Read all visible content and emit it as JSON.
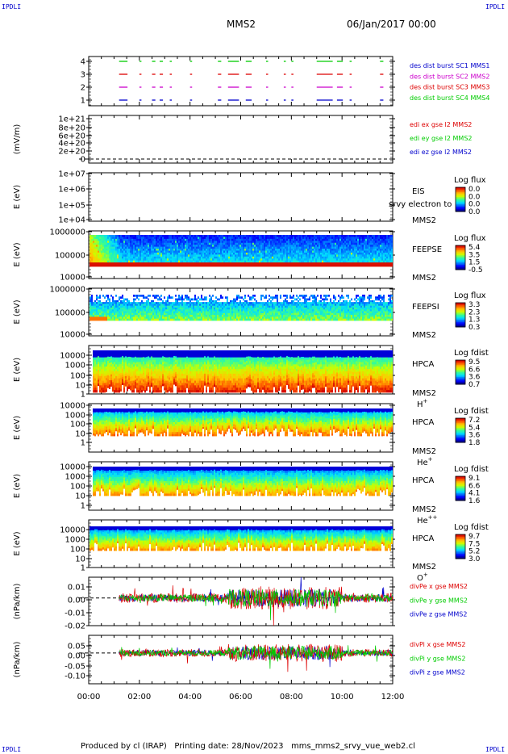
{
  "corners": {
    "top_left": "IPDLI",
    "top_right": "IPDLI",
    "bottom_left": "IPDLI",
    "bottom_right": "IPDLI"
  },
  "header": {
    "title": "MMS2",
    "date": "06/Jan/2017 00:00"
  },
  "footer": {
    "produced": "Produced by cl (IRAP)",
    "printing": "Printing date: 28/Nov/2023",
    "file": "mms_mms2_srvy_vue_web2.cl"
  },
  "colors": {
    "blue": "#0000cc",
    "red": "#dd0000",
    "magenta": "#cc00cc",
    "green": "#00cc00"
  },
  "chart_data": [
    {
      "type": "scatter",
      "id": "burst",
      "ylabel": "",
      "yticks": [
        "4",
        "3",
        "2",
        "1"
      ],
      "legend": [
        {
          "text": "des dist burst SC1 MMS1",
          "color": "#0000cc"
        },
        {
          "text": "des dist burst SC2 MMS2",
          "color": "#cc00cc"
        },
        {
          "text": "des dist burst SC3 MMS3",
          "color": "#dd0000"
        },
        {
          "text": "des dist burst SC4 MMS4",
          "color": "#00cc00"
        }
      ],
      "series": [
        {
          "level": 4,
          "color": "#00cc00",
          "intervals": [
            [
              1.2,
              1.5
            ],
            [
              2.0,
              2.05
            ],
            [
              2.5,
              2.6
            ],
            [
              2.8,
              2.9
            ],
            [
              3.2,
              3.25
            ],
            [
              4.0,
              4.05
            ],
            [
              5.1,
              5.2
            ],
            [
              5.5,
              5.9
            ],
            [
              6.2,
              6.4
            ],
            [
              7.0,
              7.05
            ],
            [
              7.7,
              7.75
            ],
            [
              8.0,
              8.05
            ],
            [
              9.0,
              9.6
            ],
            [
              9.8,
              10.0
            ],
            [
              10.3,
              10.35
            ],
            [
              11.5,
              11.6
            ]
          ]
        },
        {
          "level": 3,
          "color": "#dd0000",
          "intervals": [
            [
              1.2,
              1.5
            ],
            [
              2.0,
              2.05
            ],
            [
              2.5,
              2.6
            ],
            [
              2.8,
              2.9
            ],
            [
              3.2,
              3.25
            ],
            [
              4.0,
              4.05
            ],
            [
              5.1,
              5.2
            ],
            [
              5.5,
              5.9
            ],
            [
              6.2,
              6.4
            ],
            [
              7.0,
              7.05
            ],
            [
              7.7,
              7.75
            ],
            [
              8.0,
              8.05
            ],
            [
              9.0,
              9.6
            ],
            [
              9.8,
              10.0
            ],
            [
              10.3,
              10.35
            ],
            [
              11.5,
              11.6
            ]
          ]
        },
        {
          "level": 2,
          "color": "#cc00cc",
          "intervals": [
            [
              1.2,
              1.5
            ],
            [
              2.0,
              2.05
            ],
            [
              2.5,
              2.6
            ],
            [
              2.8,
              2.9
            ],
            [
              3.2,
              3.25
            ],
            [
              4.0,
              4.05
            ],
            [
              5.1,
              5.2
            ],
            [
              5.5,
              5.9
            ],
            [
              6.2,
              6.4
            ],
            [
              7.0,
              7.05
            ],
            [
              7.7,
              7.75
            ],
            [
              8.0,
              8.05
            ],
            [
              9.0,
              9.6
            ],
            [
              9.8,
              10.0
            ],
            [
              10.3,
              10.35
            ],
            [
              11.5,
              11.6
            ]
          ]
        },
        {
          "level": 1,
          "color": "#0000cc",
          "intervals": [
            [
              1.2,
              1.5
            ],
            [
              2.0,
              2.05
            ],
            [
              2.5,
              2.6
            ],
            [
              2.8,
              2.9
            ],
            [
              3.2,
              3.25
            ],
            [
              4.0,
              4.05
            ],
            [
              5.1,
              5.2
            ],
            [
              5.5,
              5.9
            ],
            [
              6.2,
              6.4
            ],
            [
              7.0,
              7.05
            ],
            [
              7.7,
              7.75
            ],
            [
              8.0,
              8.05
            ],
            [
              9.0,
              9.6
            ],
            [
              9.8,
              10.0
            ],
            [
              10.3,
              10.35
            ],
            [
              11.5,
              11.6
            ]
          ]
        }
      ]
    },
    {
      "type": "line",
      "id": "edi",
      "ylabel": "(mV/m)",
      "yticks": [
        "1e+21",
        "8e+20",
        "6e+20",
        "4e+20",
        "2e+20",
        "0"
      ],
      "legend": [
        {
          "text": "edi ex gse l2 MMS2",
          "color": "#dd0000"
        },
        {
          "text": "edi ey gse l2 MMS2",
          "color": "#00cc00"
        },
        {
          "text": "edi ez gse l2 MMS2",
          "color": "#0000cc"
        }
      ]
    },
    {
      "type": "heatmap",
      "id": "eis",
      "ylabel": "E (eV)",
      "yticks": [
        "1e+07",
        "1e+06",
        "1e+05",
        "1e+04"
      ],
      "instrument": "EIS",
      "spacecraft": "MMS2",
      "overlay": "srvy electron to",
      "colorbar": {
        "title": "Log flux",
        "ticks": [
          "0.0",
          "0.0",
          "0.0",
          "0.0"
        ]
      }
    },
    {
      "type": "heatmap",
      "id": "feepse",
      "ylabel": "E (eV)",
      "yticks": [
        "1000000",
        "100000",
        "10000"
      ],
      "instrument": "FEEPSE",
      "spacecraft": "MMS2",
      "colorbar": {
        "title": "Log flux",
        "ticks": [
          "5.4",
          "3.5",
          "1.5",
          "-0.5"
        ]
      }
    },
    {
      "type": "heatmap",
      "id": "feepsi",
      "ylabel": "E (eV)",
      "yticks": [
        "1000000",
        "100000",
        "10000"
      ],
      "instrument": "FEEPSI",
      "spacecraft": "MMS2",
      "colorbar": {
        "title": "Log flux",
        "ticks": [
          "3.3",
          "2.3",
          "1.3",
          "0.3"
        ]
      }
    },
    {
      "type": "heatmap",
      "id": "hpca_h",
      "ylabel": "E (eV)",
      "yticks": [
        "10000",
        "1000",
        "100",
        "10",
        "1"
      ],
      "instrument": "HPCA",
      "spacecraft": "MMS2",
      "species": "H",
      "species_sup": "+",
      "colorbar": {
        "title": "Log fdist",
        "ticks": [
          "9.5",
          "6.6",
          "3.6",
          "0.7"
        ]
      }
    },
    {
      "type": "heatmap",
      "id": "hpca_he",
      "ylabel": "E (eV)",
      "yticks": [
        "10000",
        "1000",
        "100",
        "10",
        "1"
      ],
      "instrument": "HPCA",
      "spacecraft": "MMS2",
      "species": "He",
      "species_sup": "+",
      "colorbar": {
        "title": "Log fdist",
        "ticks": [
          "7.2",
          "5.4",
          "3.6",
          "1.8"
        ]
      }
    },
    {
      "type": "heatmap",
      "id": "hpca_hepp",
      "ylabel": "E (eV)",
      "yticks": [
        "10000",
        "1000",
        "100",
        "10",
        "1"
      ],
      "instrument": "HPCA",
      "spacecraft": "MMS2",
      "species": "He",
      "species_sup": "++",
      "colorbar": {
        "title": "Log fdist",
        "ticks": [
          "9.1",
          "6.6",
          "4.1",
          "1.6"
        ]
      }
    },
    {
      "type": "heatmap",
      "id": "hpca_o",
      "ylabel": "E (eV)",
      "yticks": [
        "10000",
        "1000",
        "100",
        "10",
        "1"
      ],
      "instrument": "HPCA",
      "spacecraft": "MMS2",
      "species": "O",
      "species_sup": "+",
      "colorbar": {
        "title": "Log fdist",
        "ticks": [
          "9.7",
          "7.5",
          "5.2",
          "3.0"
        ]
      }
    },
    {
      "type": "line",
      "id": "divpe",
      "ylabel": "(nPa/km)",
      "yticks": [
        "0.01",
        "0.00",
        "-0.01",
        "-0.02"
      ],
      "ylim": [
        -0.02,
        0.015
      ],
      "legend": [
        {
          "text": "divPe x gse MMS2",
          "color": "#dd0000"
        },
        {
          "text": "divPe y gse MMS2",
          "color": "#00cc00"
        },
        {
          "text": "divPe z gse MMS2",
          "color": "#0000cc"
        }
      ]
    },
    {
      "type": "line",
      "id": "divpi",
      "ylabel": "(nPa/km)",
      "yticks": [
        "0.05",
        "0.00",
        "-0.05",
        "-0.10"
      ],
      "ylim": [
        -0.14,
        0.08
      ],
      "legend": [
        {
          "text": "divPi x gse MMS2",
          "color": "#dd0000"
        },
        {
          "text": "divPi y gse MMS2",
          "color": "#00cc00"
        },
        {
          "text": "divPi z gse MMS2",
          "color": "#0000cc"
        }
      ]
    }
  ],
  "xaxis": {
    "ticks": [
      "00:00",
      "02:00",
      "04:00",
      "06:00",
      "08:00",
      "10:00",
      "12:00"
    ],
    "range_hours": [
      0,
      12
    ]
  }
}
